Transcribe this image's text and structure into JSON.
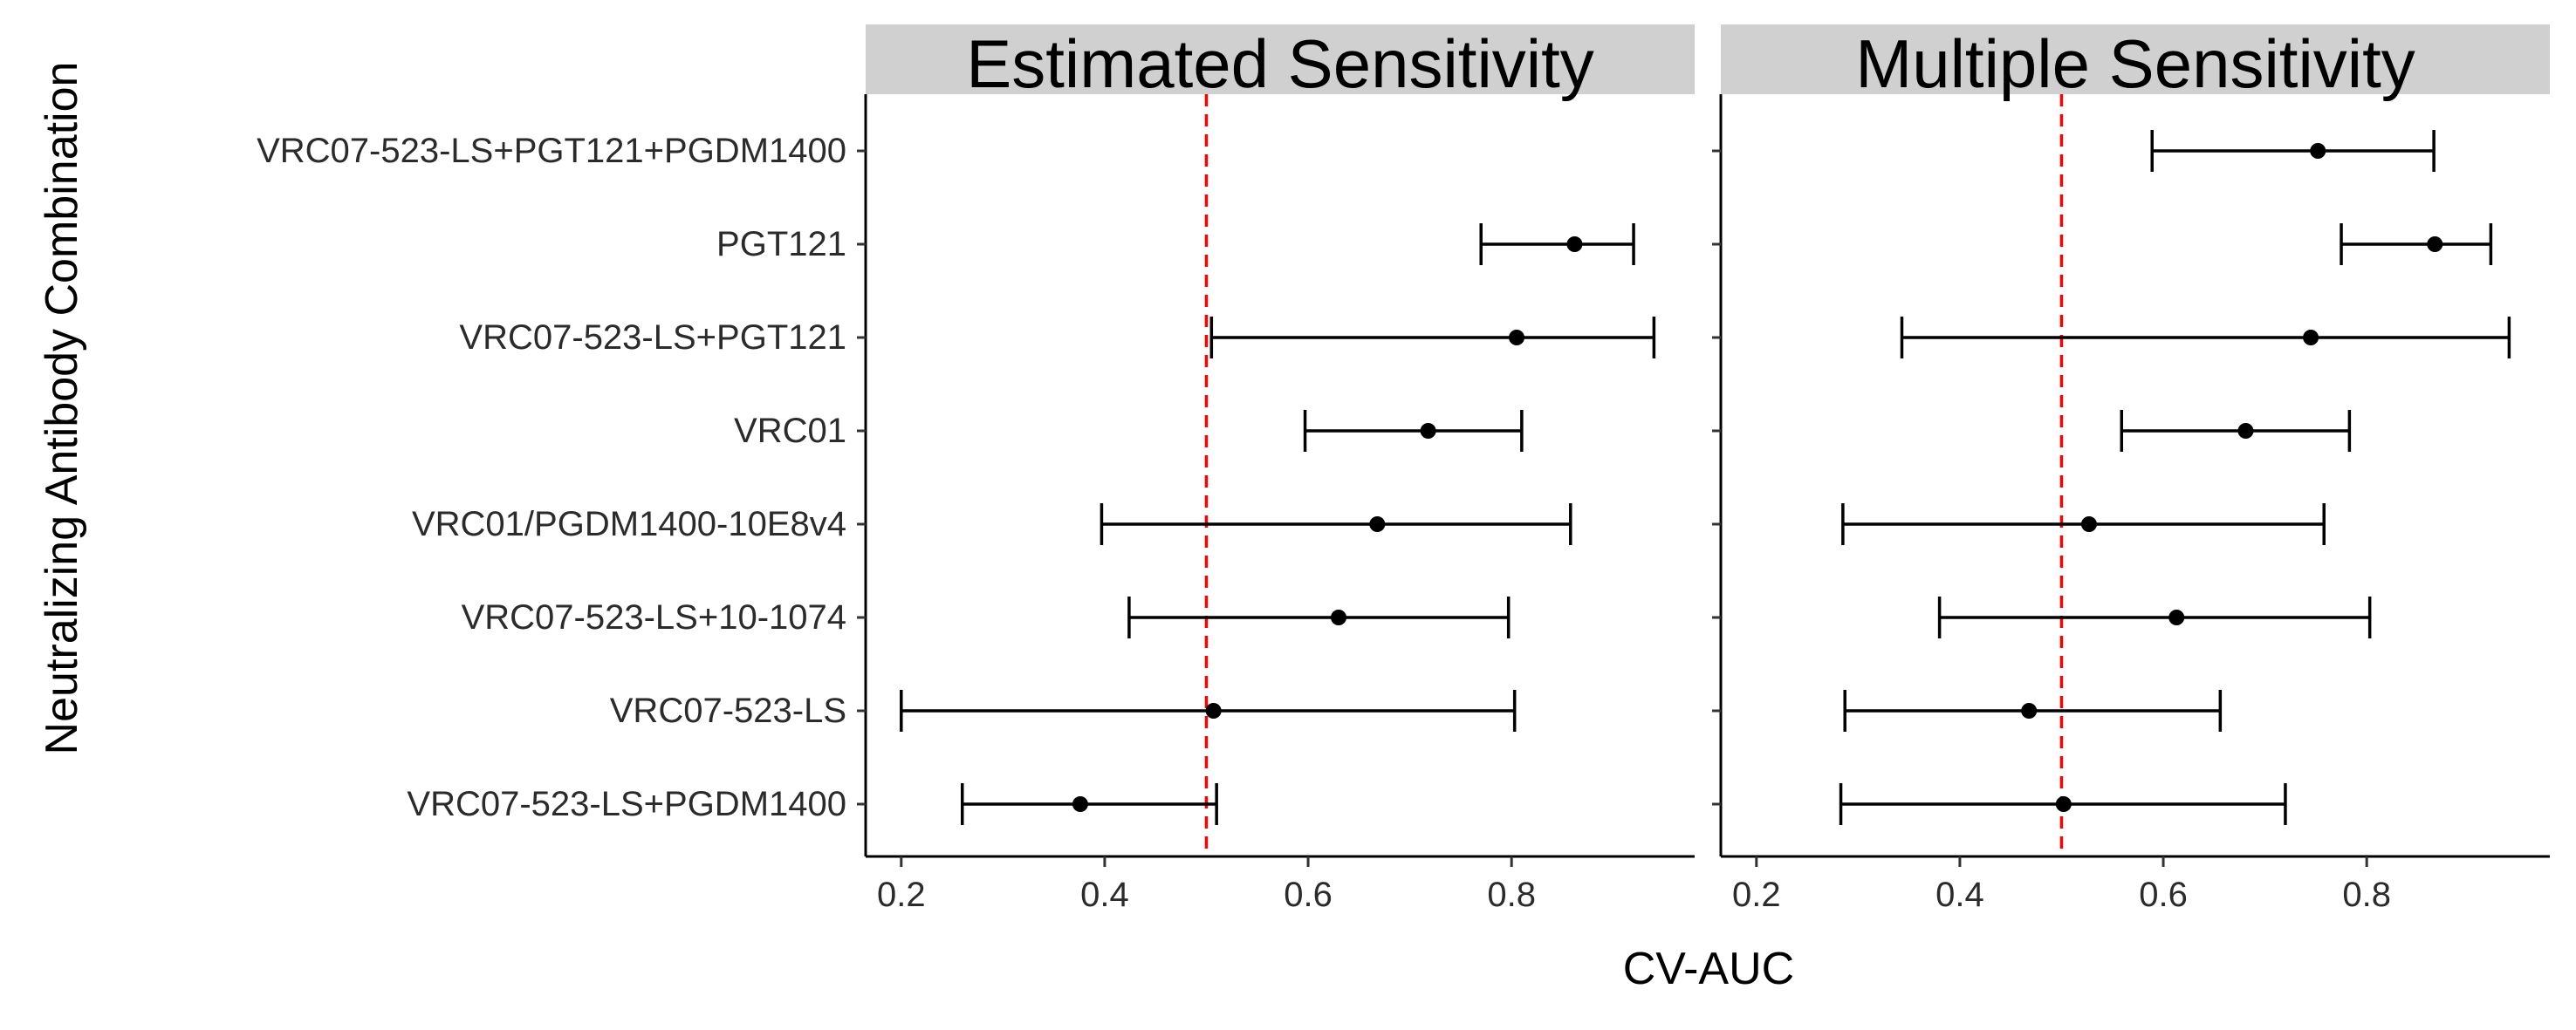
{
  "colors": {
    "strip_fill": "#d0d0d0",
    "reference_line": "#ff0000",
    "mark": "#000000"
  },
  "chart_data": {
    "type": "forest",
    "xlabel": "CV-AUC",
    "ylabel": "Neutralizing Antibody Combination",
    "xlim": [
      0.165,
      0.98
    ],
    "xticks": [
      0.2,
      0.4,
      0.6,
      0.8
    ],
    "xtick_labels": [
      "0.2",
      "0.4",
      "0.6",
      "0.8"
    ],
    "reference_line": 0.5,
    "grid": false,
    "categories": [
      "VRC07-523-LS+PGT121+PGDM1400",
      "PGT121",
      "VRC07-523-LS+PGT121",
      "VRC01",
      "VRC01/PGDM1400-10E8v4",
      "VRC07-523-LS+10-1074",
      "VRC07-523-LS",
      "VRC07-523-LS+PGDM1400"
    ],
    "panels": [
      {
        "title": "Estimated Sensitivity",
        "estimates": [
          null,
          0.862,
          0.805,
          0.718,
          0.668,
          0.63,
          0.507,
          0.376
        ],
        "lower": [
          null,
          0.77,
          0.505,
          0.597,
          0.397,
          0.424,
          0.2,
          0.26
        ],
        "upper": [
          null,
          0.92,
          0.94,
          0.81,
          0.858,
          0.797,
          0.803,
          0.51
        ]
      },
      {
        "title": "Multiple Sensitivity",
        "estimates": [
          0.752,
          0.867,
          0.745,
          0.681,
          0.527,
          0.613,
          0.468,
          0.502
        ],
        "lower": [
          0.589,
          0.775,
          0.343,
          0.559,
          0.285,
          0.38,
          0.287,
          0.283
        ],
        "upper": [
          0.866,
          0.922,
          0.94,
          0.783,
          0.758,
          0.803,
          0.656,
          0.72
        ]
      }
    ]
  }
}
